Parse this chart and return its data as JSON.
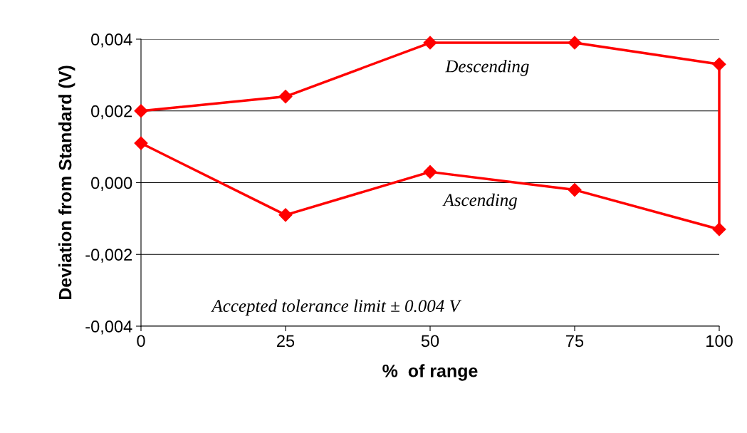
{
  "chart_data": {
    "type": "line",
    "xlabel": "%  of range",
    "ylabel": "Deviation from Standard (V)",
    "x": [
      0,
      25,
      50,
      75,
      100,
      100,
      75,
      50,
      25,
      0
    ],
    "series": [
      {
        "color": "#ff0000",
        "values": [
          0.0011,
          -0.0009,
          0.0003,
          -0.0002,
          -0.0013,
          0.0033,
          0.0039,
          0.0039,
          0.0024,
          0.002
        ]
      }
    ],
    "xlim": [
      0,
      100
    ],
    "xticks": [
      0,
      25,
      50,
      75,
      100
    ],
    "ylim": [
      -0.004,
      0.004
    ],
    "yticks": [
      {
        "value": -0.004,
        "label": "-0,004"
      },
      {
        "value": -0.002,
        "label": "-0,002"
      },
      {
        "value": 0,
        "label": "0,000"
      },
      {
        "value": 0.002,
        "label": "0,002"
      },
      {
        "value": 0.004,
        "label": "0,004"
      }
    ],
    "grid": "y",
    "marker": "diamond",
    "line_style": "solid",
    "annotations": [
      "Descending",
      "Ascending",
      "Accepted tolerance limit ± 0.004 V"
    ]
  }
}
